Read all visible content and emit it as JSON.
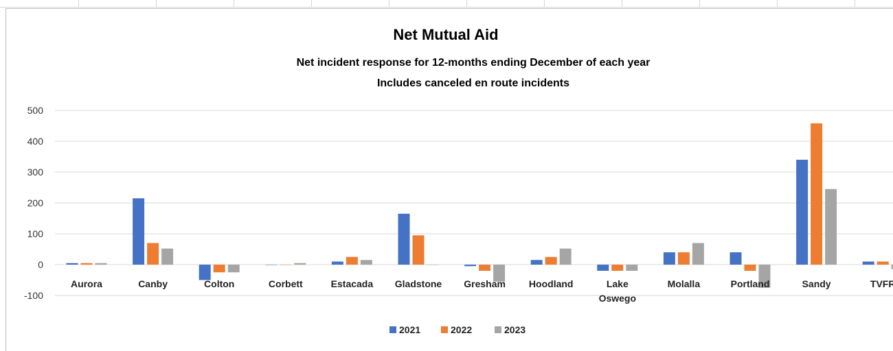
{
  "chart_data": {
    "type": "bar",
    "title": "Net Mutual Aid",
    "subtitle_lines": [
      "Net incident response for 12-months ending December of each year",
      "Includes canceled en route incidents"
    ],
    "xlabel": "",
    "ylabel": "",
    "ylim": [
      -100,
      500
    ],
    "yticks": [
      500,
      400,
      300,
      200,
      100,
      0,
      -100
    ],
    "grid": true,
    "legend_position": "bottom",
    "categories": [
      "Aurora",
      "Canby",
      "Colton",
      "Corbett",
      "Estacada",
      "Gladstone",
      "Gresham",
      "Hoodland",
      "Lake\nOswego",
      "Molalla",
      "Portland",
      "Sandy",
      "TVFR"
    ],
    "series": [
      {
        "name": "2021",
        "color": "#4472c4",
        "values": [
          5,
          215,
          -50,
          0,
          10,
          165,
          -5,
          15,
          -20,
          40,
          40,
          340,
          10
        ]
      },
      {
        "name": "2022",
        "color": "#ed7d31",
        "values": [
          5,
          70,
          -25,
          0,
          25,
          95,
          -20,
          25,
          -20,
          40,
          -20,
          458,
          10
        ]
      },
      {
        "name": "2023",
        "color": "#a5a5a5",
        "values": [
          5,
          52,
          -25,
          5,
          15,
          0,
          -55,
          52,
          -20,
          70,
          -75,
          245,
          -15
        ]
      }
    ]
  }
}
